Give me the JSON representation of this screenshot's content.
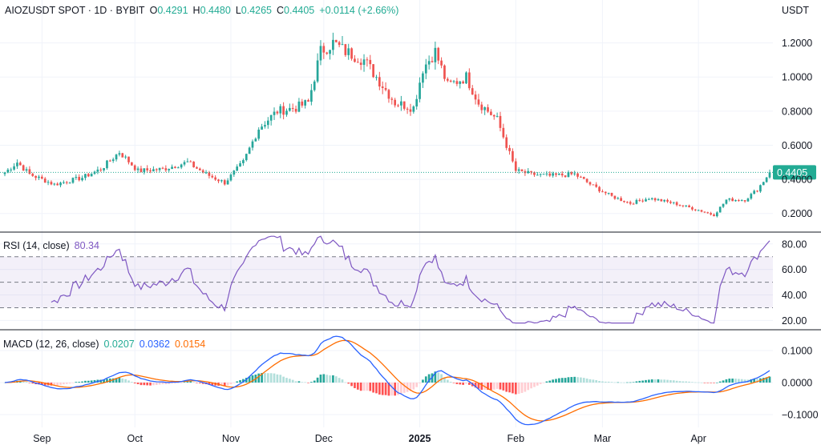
{
  "header": {
    "symbol": "AIOZUSDT SPOT · 1D · BYBIT",
    "open_label": "O",
    "open": "0.4291",
    "high_label": "H",
    "high": "0.4480",
    "low_label": "L",
    "low": "0.4265",
    "close_label": "C",
    "close": "0.4405",
    "change": "+0.0114 (+2.66%)"
  },
  "price_axis_unit": "USDT",
  "rsi_legend": {
    "label": "RSI (14, close)",
    "value": "80.34"
  },
  "macd_legend": {
    "label": "MACD (12, 26, close)",
    "hist": "0.0207",
    "macd": "0.0362",
    "signal": "0.0154"
  },
  "colors": {
    "up": "#26a69a",
    "down": "#ef5350",
    "rsi": "#7e57c2",
    "macd": "#2962ff",
    "signal": "#ff6d00",
    "last": "#22ab94"
  },
  "chart_data": [
    {
      "type": "candlestick",
      "title": "AIOZUSDT SPOT · 1D · BYBIT",
      "x_ticks": [
        "Sep",
        "Oct",
        "Nov",
        "Dec",
        "2025",
        "Feb",
        "Mar",
        "Apr"
      ],
      "y_ticks": [
        0.2,
        0.4,
        0.6,
        0.8,
        1.0,
        1.2
      ],
      "y_tick_labels": [
        "0.2000",
        "0.4000",
        "0.6000",
        "0.8000",
        "1.0000",
        "1.2000"
      ],
      "ylim": [
        0.1,
        1.32
      ],
      "last_price": 0.4405,
      "last_price_label": "0.4405",
      "approx_close_path": [
        [
          "2024-08-20",
          0.44
        ],
        [
          "2024-08-24",
          0.5
        ],
        [
          "2024-08-28",
          0.43
        ],
        [
          "2024-09-05",
          0.37
        ],
        [
          "2024-09-14",
          0.41
        ],
        [
          "2024-09-20",
          0.46
        ],
        [
          "2024-09-26",
          0.56
        ],
        [
          "2024-10-02",
          0.45
        ],
        [
          "2024-10-10",
          0.46
        ],
        [
          "2024-10-18",
          0.5
        ],
        [
          "2024-10-24",
          0.43
        ],
        [
          "2024-10-30",
          0.38
        ],
        [
          "2024-11-05",
          0.5
        ],
        [
          "2024-11-10",
          0.7
        ],
        [
          "2024-11-16",
          0.8
        ],
        [
          "2024-11-22",
          0.82
        ],
        [
          "2024-11-26",
          0.85
        ],
        [
          "2024-11-30",
          1.15
        ],
        [
          "2024-12-04",
          1.2
        ],
        [
          "2024-12-08",
          1.15
        ],
        [
          "2024-12-14",
          1.1
        ],
        [
          "2024-12-18",
          1.0
        ],
        [
          "2024-12-24",
          0.85
        ],
        [
          "2024-12-30",
          0.82
        ],
        [
          "2025-01-02",
          1.05
        ],
        [
          "2025-01-06",
          1.15
        ],
        [
          "2025-01-10",
          0.95
        ],
        [
          "2025-01-16",
          1.0
        ],
        [
          "2025-01-20",
          0.85
        ],
        [
          "2025-01-26",
          0.75
        ],
        [
          "2025-02-01",
          0.45
        ],
        [
          "2025-02-06",
          0.43
        ],
        [
          "2025-02-12",
          0.42
        ],
        [
          "2025-02-20",
          0.43
        ],
        [
          "2025-02-26",
          0.36
        ],
        [
          "2025-03-04",
          0.3
        ],
        [
          "2025-03-10",
          0.26
        ],
        [
          "2025-03-16",
          0.29
        ],
        [
          "2025-03-24",
          0.26
        ],
        [
          "2025-04-01",
          0.22
        ],
        [
          "2025-04-06",
          0.19
        ],
        [
          "2025-04-10",
          0.28
        ],
        [
          "2025-04-16",
          0.28
        ],
        [
          "2025-04-20",
          0.34
        ],
        [
          "2025-04-24",
          0.4405
        ]
      ]
    },
    {
      "type": "line",
      "title": "RSI (14, close)",
      "y_ticks": [
        20,
        40,
        60,
        80
      ],
      "y_tick_labels": [
        "20.00",
        "40.00",
        "60.00",
        "80.00"
      ],
      "ylim": [
        14,
        88
      ],
      "bands": {
        "upper": 70,
        "middle": 50,
        "lower": 30
      },
      "last_value": 80.34
    },
    {
      "type": "line",
      "title": "MACD (12, 26, close)",
      "y_ticks": [
        -0.1,
        0.0,
        0.1
      ],
      "y_tick_labels": [
        "−0.1000",
        "0.0000",
        "0.1000"
      ],
      "ylim": [
        -0.14,
        0.16
      ],
      "series": [
        {
          "name": "MACD",
          "last": 0.0362
        },
        {
          "name": "Signal",
          "last": 0.0154
        },
        {
          "name": "Histogram",
          "last": 0.0207
        }
      ]
    }
  ]
}
